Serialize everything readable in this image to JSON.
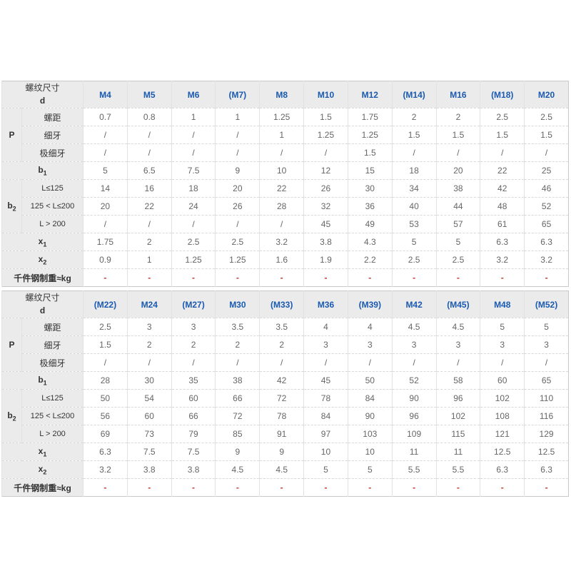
{
  "colors": {
    "header_text": "#1a5ab2",
    "label_background": "#ebebeb",
    "data_text": "#666666",
    "label_text": "#333333",
    "dash_color": "#c0392b",
    "border": "#e2e2e2"
  },
  "row_template_labels": {
    "corner_line1": "螺纹尺寸",
    "corner_line2": "d",
    "pitch_group": "P",
    "pitch_coarse": "螺距",
    "pitch_fine": "细牙",
    "pitch_extra_fine": "极细牙",
    "b1": "b",
    "b2": "b",
    "len_1": "L≤125",
    "len_2": "125 < L≤200",
    "len_3": "L > 200",
    "x1": "x",
    "x2": "x",
    "weight": "千件钢制重≈kg"
  },
  "tables": [
    {
      "corner": {
        "line1": "螺纹尺寸",
        "line2": "d"
      },
      "columns": [
        "M4",
        "M5",
        "M6",
        "(M7)",
        "M8",
        "M10",
        "M12",
        "(M14)",
        "M16",
        "(M18)",
        "M20"
      ],
      "rows": [
        {
          "kind": "group-start",
          "group_base": "P",
          "group_sub": "",
          "group_span": 3,
          "label": "螺距",
          "small": false,
          "values": [
            "0.7",
            "0.8",
            "1",
            "1",
            "1.25",
            "1.5",
            "1.75",
            "2",
            "2",
            "2.5",
            "2.5"
          ]
        },
        {
          "kind": "sub",
          "label": "细牙",
          "small": false,
          "values": [
            "/",
            "/",
            "/",
            "/",
            "1",
            "1.25",
            "1.25",
            "1.5",
            "1.5",
            "1.5",
            "1.5"
          ]
        },
        {
          "kind": "sub",
          "label": "极细牙",
          "small": false,
          "values": [
            "/",
            "/",
            "/",
            "/",
            "/",
            "/",
            "1.5",
            "/",
            "/",
            "/",
            "/"
          ]
        },
        {
          "kind": "full",
          "label_base": "b",
          "label_sub": "1",
          "values": [
            "5",
            "6.5",
            "7.5",
            "9",
            "10",
            "12",
            "15",
            "18",
            "20",
            "22",
            "25"
          ]
        },
        {
          "kind": "group-start",
          "group_base": "b",
          "group_sub": "2",
          "group_span": 3,
          "label": "L≤125",
          "small": true,
          "values": [
            "14",
            "16",
            "18",
            "20",
            "22",
            "26",
            "30",
            "34",
            "38",
            "42",
            "46"
          ]
        },
        {
          "kind": "sub",
          "label": "125 < L≤200",
          "small": true,
          "values": [
            "20",
            "22",
            "24",
            "26",
            "28",
            "32",
            "36",
            "40",
            "44",
            "48",
            "52"
          ]
        },
        {
          "kind": "sub",
          "label": "L > 200",
          "small": true,
          "values": [
            "/",
            "/",
            "/",
            "/",
            "/",
            "45",
            "49",
            "53",
            "57",
            "61",
            "65"
          ]
        },
        {
          "kind": "full",
          "label_base": "x",
          "label_sub": "1",
          "values": [
            "1.75",
            "2",
            "2.5",
            "2.5",
            "3.2",
            "3.8",
            "4.3",
            "5",
            "5",
            "6.3",
            "6.3"
          ]
        },
        {
          "kind": "full",
          "label_base": "x",
          "label_sub": "2",
          "values": [
            "0.9",
            "1",
            "1.25",
            "1.25",
            "1.6",
            "1.9",
            "2.2",
            "2.5",
            "2.5",
            "3.2",
            "3.2"
          ]
        },
        {
          "kind": "full",
          "label_base": "千件钢制重≈kg",
          "label_sub": "",
          "values": [
            "-",
            "-",
            "-",
            "-",
            "-",
            "-",
            "-",
            "-",
            "-",
            "-",
            "-"
          ]
        }
      ]
    },
    {
      "corner": {
        "line1": "螺纹尺寸",
        "line2": "d"
      },
      "columns": [
        "(M22)",
        "M24",
        "(M27)",
        "M30",
        "(M33)",
        "M36",
        "(M39)",
        "M42",
        "(M45)",
        "M48",
        "(M52)"
      ],
      "rows": [
        {
          "kind": "group-start",
          "group_base": "P",
          "group_sub": "",
          "group_span": 3,
          "label": "螺距",
          "small": false,
          "values": [
            "2.5",
            "3",
            "3",
            "3.5",
            "3.5",
            "4",
            "4",
            "4.5",
            "4.5",
            "5",
            "5"
          ]
        },
        {
          "kind": "sub",
          "label": "细牙",
          "small": false,
          "values": [
            "1.5",
            "2",
            "2",
            "2",
            "2",
            "3",
            "3",
            "3",
            "3",
            "3",
            "3"
          ]
        },
        {
          "kind": "sub",
          "label": "极细牙",
          "small": false,
          "values": [
            "/",
            "/",
            "/",
            "/",
            "/",
            "/",
            "/",
            "/",
            "/",
            "/",
            "/"
          ]
        },
        {
          "kind": "full",
          "label_base": "b",
          "label_sub": "1",
          "values": [
            "28",
            "30",
            "35",
            "38",
            "42",
            "45",
            "50",
            "52",
            "58",
            "60",
            "65"
          ]
        },
        {
          "kind": "group-start",
          "group_base": "b",
          "group_sub": "2",
          "group_span": 3,
          "label": "L≤125",
          "small": true,
          "values": [
            "50",
            "54",
            "60",
            "66",
            "72",
            "78",
            "84",
            "90",
            "96",
            "102",
            "110"
          ]
        },
        {
          "kind": "sub",
          "label": "125 < L≤200",
          "small": true,
          "values": [
            "56",
            "60",
            "66",
            "72",
            "78",
            "84",
            "90",
            "96",
            "102",
            "108",
            "116"
          ]
        },
        {
          "kind": "sub",
          "label": "L > 200",
          "small": true,
          "values": [
            "69",
            "73",
            "79",
            "85",
            "91",
            "97",
            "103",
            "109",
            "115",
            "121",
            "129"
          ]
        },
        {
          "kind": "full",
          "label_base": "x",
          "label_sub": "1",
          "values": [
            "6.3",
            "7.5",
            "7.5",
            "9",
            "9",
            "10",
            "10",
            "11",
            "11",
            "12.5",
            "12.5"
          ]
        },
        {
          "kind": "full",
          "label_base": "x",
          "label_sub": "2",
          "values": [
            "3.2",
            "3.8",
            "3.8",
            "4.5",
            "4.5",
            "5",
            "5",
            "5.5",
            "5.5",
            "6.3",
            "6.3"
          ]
        },
        {
          "kind": "full",
          "label_base": "千件钢制重≈kg",
          "label_sub": "",
          "values": [
            "-",
            "-",
            "-",
            "-",
            "-",
            "-",
            "-",
            "-",
            "-",
            "-",
            "-"
          ]
        }
      ]
    }
  ]
}
